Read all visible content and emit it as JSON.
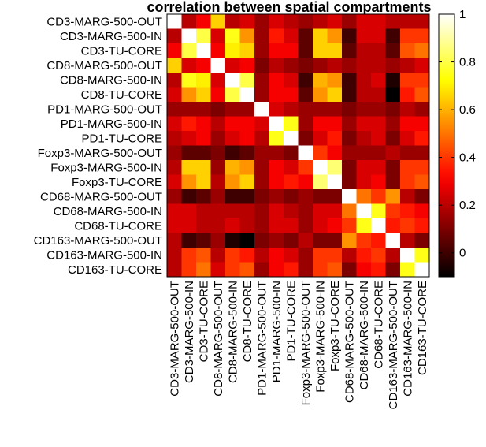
{
  "chart_data": {
    "type": "heatmap",
    "title": "correlation between spatial compartments",
    "xlabel": "",
    "ylabel": "",
    "labels": [
      "CD3-MARG-500-OUT",
      "CD3-MARG-500-IN",
      "CD3-TU-CORE",
      "CD8-MARG-500-OUT",
      "CD8-MARG-500-IN",
      "CD8-TU-CORE",
      "PD1-MARG-500-OUT",
      "PD1-MARG-500-IN",
      "PD1-TU-CORE",
      "Foxp3-MARG-500-OUT",
      "Foxp3-MARG-500-IN",
      "Foxp3-TU-CORE",
      "CD68-MARG-500-OUT",
      "CD68-MARG-500-IN",
      "CD68-TU-CORE",
      "CD163-MARG-500-OUT",
      "CD163-MARG-500-IN",
      "CD163-TU-CORE"
    ],
    "values": [
      [
        1.0,
        0.2,
        0.3,
        0.65,
        0.2,
        0.25,
        0.15,
        0.25,
        0.2,
        0.15,
        0.2,
        0.25,
        0.15,
        0.25,
        0.25,
        0.2,
        0.2,
        0.2
      ],
      [
        0.2,
        1.0,
        0.8,
        0.25,
        0.75,
        0.55,
        0.15,
        0.35,
        0.25,
        0.05,
        0.65,
        0.55,
        0.0,
        0.25,
        0.25,
        0.0,
        0.4,
        0.4
      ],
      [
        0.3,
        0.8,
        1.0,
        0.3,
        0.7,
        0.65,
        0.15,
        0.3,
        0.3,
        0.05,
        0.65,
        0.65,
        0.05,
        0.2,
        0.2,
        0.05,
        0.45,
        0.5
      ],
      [
        0.65,
        0.25,
        0.3,
        1.0,
        0.25,
        0.3,
        0.1,
        0.2,
        0.15,
        0.1,
        0.15,
        0.2,
        0.15,
        0.2,
        0.2,
        0.15,
        0.2,
        0.25
      ],
      [
        0.2,
        0.75,
        0.7,
        0.25,
        1.0,
        0.8,
        0.15,
        0.3,
        0.25,
        0.0,
        0.6,
        0.55,
        0.0,
        0.2,
        0.25,
        -0.05,
        0.4,
        0.4
      ],
      [
        0.25,
        0.55,
        0.65,
        0.3,
        0.8,
        1.0,
        0.15,
        0.3,
        0.3,
        0.05,
        0.55,
        0.65,
        0.0,
        0.2,
        0.2,
        -0.1,
        0.35,
        0.45
      ],
      [
        0.15,
        0.15,
        0.15,
        0.1,
        0.15,
        0.15,
        1.0,
        0.25,
        0.2,
        0.15,
        0.15,
        0.15,
        0.1,
        0.15,
        0.15,
        0.1,
        0.2,
        0.15
      ],
      [
        0.25,
        0.35,
        0.3,
        0.2,
        0.3,
        0.3,
        0.25,
        1.0,
        0.75,
        0.15,
        0.3,
        0.3,
        0.15,
        0.25,
        0.25,
        0.15,
        0.3,
        0.3
      ],
      [
        0.2,
        0.25,
        0.3,
        0.15,
        0.25,
        0.3,
        0.2,
        0.75,
        1.0,
        0.1,
        0.25,
        0.35,
        0.1,
        0.2,
        0.25,
        0.1,
        0.25,
        0.35
      ],
      [
        0.15,
        0.05,
        0.05,
        0.1,
        0.0,
        0.05,
        0.15,
        0.15,
        0.1,
        1.0,
        0.4,
        0.3,
        0.15,
        0.15,
        0.15,
        0.2,
        0.15,
        0.15
      ],
      [
        0.2,
        0.65,
        0.65,
        0.15,
        0.6,
        0.55,
        0.15,
        0.3,
        0.25,
        0.4,
        1.0,
        0.85,
        0.1,
        0.25,
        0.25,
        0.1,
        0.4,
        0.4
      ],
      [
        0.25,
        0.55,
        0.65,
        0.2,
        0.55,
        0.65,
        0.15,
        0.3,
        0.35,
        0.3,
        0.85,
        1.0,
        0.1,
        0.25,
        0.3,
        0.1,
        0.4,
        0.45
      ],
      [
        0.15,
        0.0,
        0.05,
        0.15,
        0.0,
        0.0,
        0.1,
        0.15,
        0.1,
        0.15,
        0.1,
        0.1,
        1.0,
        0.5,
        0.4,
        0.55,
        0.2,
        0.1
      ],
      [
        0.25,
        0.25,
        0.2,
        0.2,
        0.2,
        0.2,
        0.15,
        0.25,
        0.2,
        0.15,
        0.25,
        0.25,
        0.5,
        1.0,
        0.75,
        0.4,
        0.35,
        0.3
      ],
      [
        0.25,
        0.25,
        0.2,
        0.2,
        0.25,
        0.2,
        0.15,
        0.25,
        0.25,
        0.15,
        0.25,
        0.3,
        0.4,
        0.75,
        1.0,
        0.35,
        0.4,
        0.35
      ],
      [
        0.2,
        0.0,
        0.05,
        0.15,
        -0.05,
        -0.1,
        0.1,
        0.15,
        0.1,
        0.2,
        0.1,
        0.1,
        0.55,
        0.4,
        0.35,
        1.0,
        0.2,
        0.1
      ],
      [
        0.2,
        0.4,
        0.45,
        0.2,
        0.4,
        0.35,
        0.2,
        0.3,
        0.25,
        0.15,
        0.4,
        0.4,
        0.2,
        0.35,
        0.4,
        0.2,
        1.0,
        0.75
      ],
      [
        0.2,
        0.4,
        0.5,
        0.25,
        0.4,
        0.45,
        0.15,
        0.3,
        0.35,
        0.15,
        0.4,
        0.45,
        0.1,
        0.3,
        0.35,
        0.1,
        0.75,
        1.0
      ]
    ],
    "colormap": "hot",
    "clim": [
      -0.1,
      1.0
    ],
    "colorbar": {
      "ticks": [
        0,
        0.2,
        0.4,
        0.6,
        0.8,
        1
      ],
      "tick_labels": [
        "0",
        "0.2",
        "0.4",
        "0.6",
        "0.8",
        "1"
      ]
    },
    "grid": false,
    "legend": "none"
  }
}
